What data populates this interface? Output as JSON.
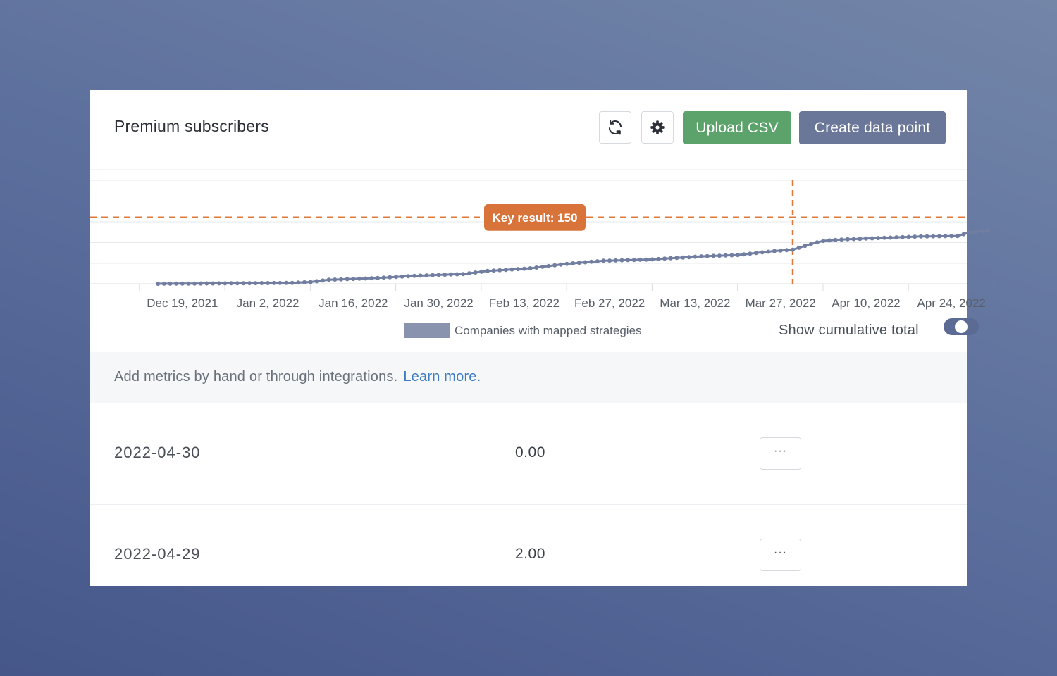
{
  "header": {
    "title": "Premium subscribers",
    "refresh_icon": "refresh-icon",
    "settings_icon": "gear-icon",
    "upload_label": "Upload CSV",
    "create_label": "Create data point"
  },
  "colors": {
    "upload_button": "#5ba36a",
    "create_button": "#6b7799",
    "series_line": "#717ea1",
    "key_result_line": "#e07a3a",
    "link": "#3d7bc4",
    "toggle_on": "#5b6b93"
  },
  "chart_data": {
    "type": "line",
    "x_ticks": [
      "Dec 19, 2021",
      "Jan 2, 2022",
      "Jan 16, 2022",
      "Jan 30, 2022",
      "Feb 13, 2022",
      "Feb 27, 2022",
      "Mar 13, 2022",
      "Mar 27, 2022",
      "Apr 10, 2022",
      "Apr 24, 2022"
    ],
    "x_range": [
      "2021-12-12",
      "2022-04-30"
    ],
    "grid": "horizontal",
    "legend_placement": "bottom-center",
    "series": [
      {
        "name": "Companies with mapped strategies",
        "start": "2021-12-15",
        "end": "2022-04-30",
        "anchors": [
          [
            "2021-12-15",
            0
          ],
          [
            "2022-01-06",
            2
          ],
          [
            "2022-01-09",
            4
          ],
          [
            "2022-01-12",
            9
          ],
          [
            "2022-01-20",
            13
          ],
          [
            "2022-01-26",
            18
          ],
          [
            "2022-02-03",
            22
          ],
          [
            "2022-02-07",
            29
          ],
          [
            "2022-02-14",
            35
          ],
          [
            "2022-02-20",
            45
          ],
          [
            "2022-02-26",
            52
          ],
          [
            "2022-03-06",
            55
          ],
          [
            "2022-03-14",
            62
          ],
          [
            "2022-03-20",
            65
          ],
          [
            "2022-03-26",
            74
          ],
          [
            "2022-03-29",
            77
          ],
          [
            "2022-04-01",
            90
          ],
          [
            "2022-04-03",
            97
          ],
          [
            "2022-04-06",
            100
          ],
          [
            "2022-04-19",
            107
          ],
          [
            "2022-04-25",
            108
          ],
          [
            "2022-04-27",
            116
          ],
          [
            "2022-04-30",
            121
          ]
        ]
      }
    ],
    "key_result": {
      "label": "Key result: 150",
      "value": 150,
      "date": "2022-03-29"
    }
  },
  "legend": {
    "series_label": "Companies with mapped strategies"
  },
  "toggle": {
    "label": "Show cumulative total",
    "on": true
  },
  "info": {
    "text": "Add metrics by hand or through integrations.",
    "link": "Learn more."
  },
  "rows": [
    {
      "date": "2022-04-30",
      "value": "0.00",
      "more": "···"
    },
    {
      "date": "2022-04-29",
      "value": "2.00",
      "more": "···"
    }
  ]
}
